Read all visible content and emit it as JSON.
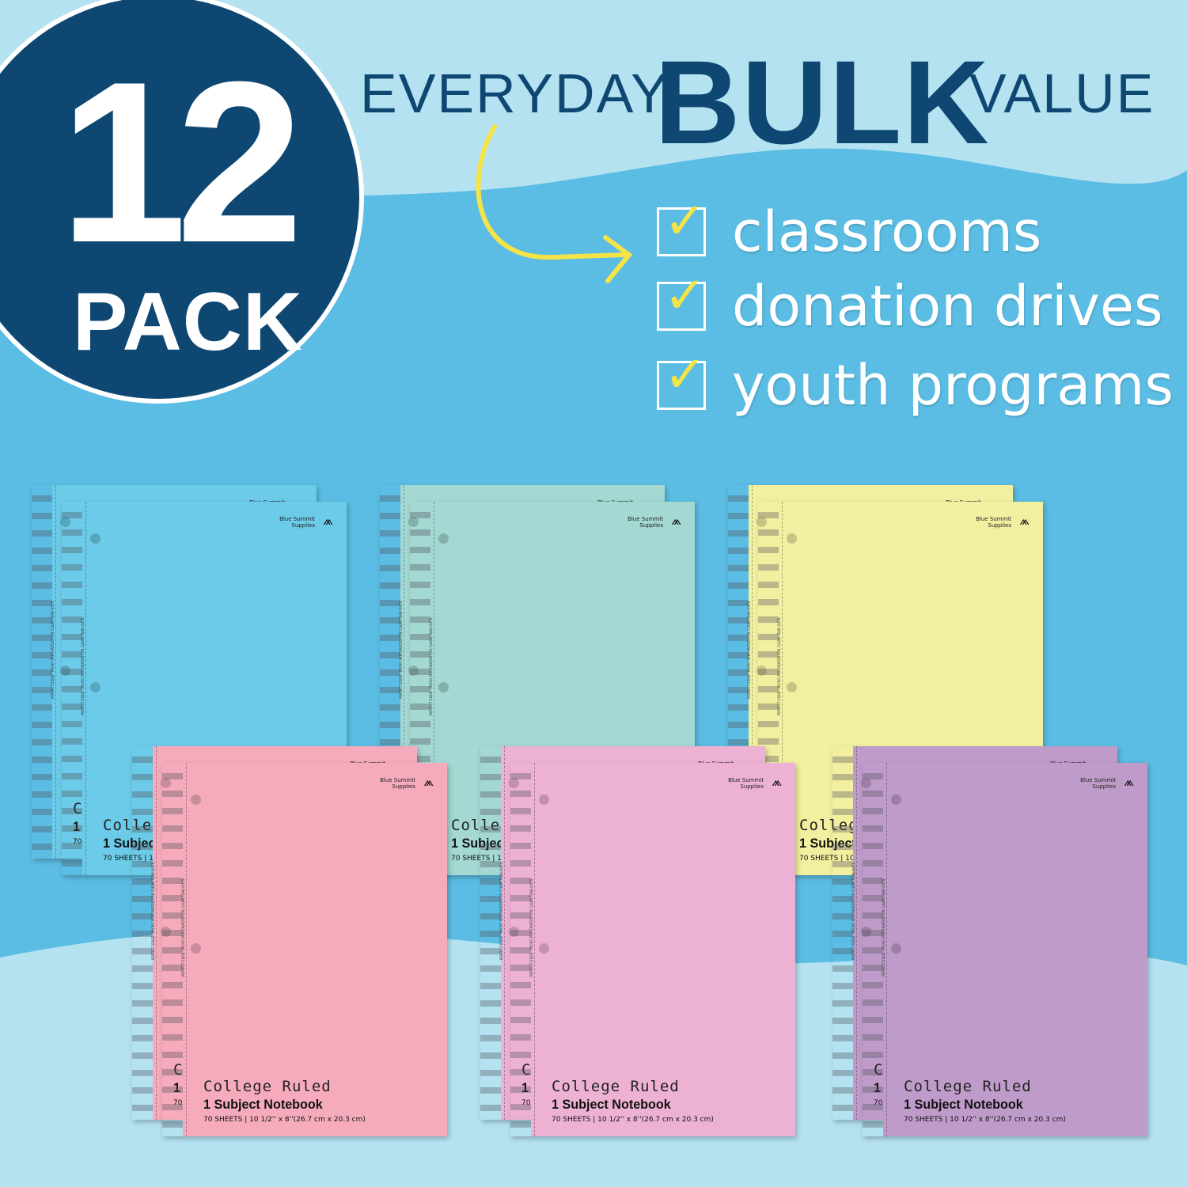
{
  "badge": {
    "number": "12",
    "label": "PACK"
  },
  "headline": {
    "pre": "EVERYDAY",
    "main": "BULK",
    "post": "VALUE"
  },
  "checklist": [
    "classrooms",
    "donation drives",
    "youth programs"
  ],
  "colors": {
    "navy": "#0d4772",
    "accent_yellow": "#f4e447",
    "wave": "#5bbde3"
  },
  "notebook": {
    "brand_line1": "Blue Summit",
    "brand_line2": "Supplies",
    "ruling": "College Ruled",
    "type": "1 Subject Notebook",
    "specs": "70 SHEETS | 10 1/2'' x 8''(26.7 cm x 20.3 cm)",
    "edge_text": "PERFECT EDGE · MICRO PERFORATED FOR CLEAN TEAR-OUTS"
  },
  "notebook_colors": [
    "#6ccbe8",
    "#a3d8d3",
    "#f2f0a0",
    "#f5abbc",
    "#edb1d4",
    "#bf9bc9"
  ]
}
